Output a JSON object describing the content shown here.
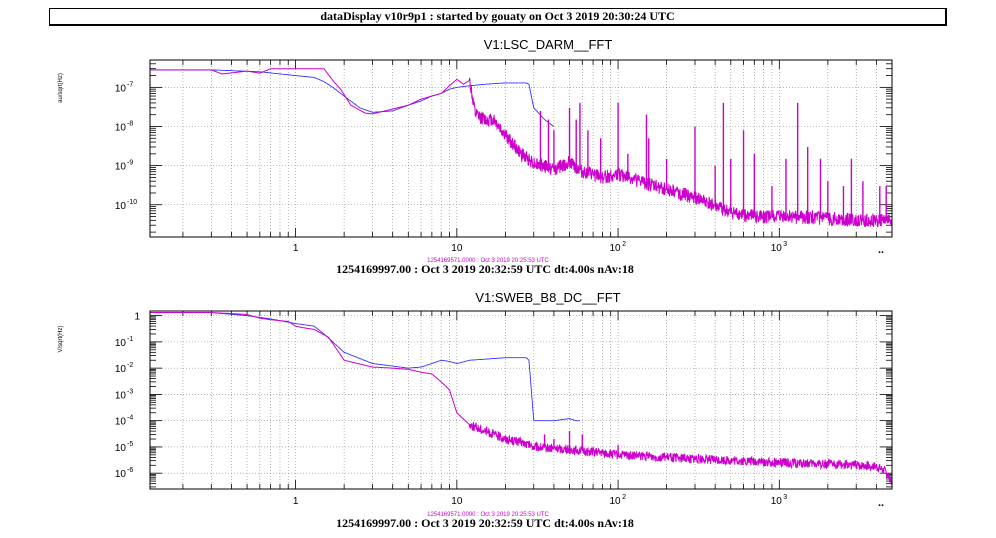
{
  "window": {
    "header": "dataDisplay v10r9p1 : started by gouaty on Oct  3 2019 20:30:24 UTC"
  },
  "chart_data": [
    {
      "type": "line",
      "title": "V1:LSC_DARM__FFT",
      "ylabel": "au/sqrt(Hz)",
      "xscale": "log",
      "yscale": "log",
      "xlim": [
        0.125,
        5000
      ],
      "ylim": [
        1.5e-11,
        5e-07
      ],
      "grid": true,
      "x_ticks": [
        {
          "value": 1,
          "base": "1",
          "exp": ""
        },
        {
          "value": 10,
          "base": "10",
          "exp": ""
        },
        {
          "value": 100,
          "base": "10",
          "exp": "2"
        },
        {
          "value": 1000,
          "base": "10",
          "exp": "3"
        }
      ],
      "y_ticks": [
        {
          "value": 1e-07,
          "base": "10",
          "exp": "-7"
        },
        {
          "value": 1e-08,
          "base": "10",
          "exp": "-8"
        },
        {
          "value": 1e-09,
          "base": "10",
          "exp": "-9"
        },
        {
          "value": 1e-10,
          "base": "10",
          "exp": "-10"
        }
      ],
      "x_overflow_label": "..",
      "reference_label": "1254169571.0000 : Oct  3 2019 20:25:53 UTC",
      "footer": "1254169997.00 : Oct  3 2019 20:32:59 UTC dt:4.00s nAv:18",
      "series": [
        {
          "color": "#3333ff",
          "x": [
            0.125,
            0.3,
            0.6,
            1.0,
            1.3,
            1.5,
            1.7,
            2.0,
            2.5,
            3.0,
            4.0,
            5.0,
            6.0,
            7.0,
            8.0,
            9.0,
            10.0,
            12.0,
            15.0,
            20.0,
            25.0,
            27.0,
            28.0,
            30.0,
            35.0,
            40.0
          ],
          "y": [
            2.8e-07,
            2.8e-07,
            2.5e-07,
            2e-07,
            1.8e-07,
            1.4e-07,
            1e-07,
            6e-08,
            3e-08,
            2.3e-08,
            2.5e-08,
            3.5e-08,
            4.5e-08,
            6e-08,
            7e-08,
            9e-08,
            1e-07,
            1.1e-07,
            1.2e-07,
            1.3e-07,
            1.3e-07,
            1.3e-07,
            1.2e-07,
            3e-08,
            1.5e-08,
            1e-08
          ]
        },
        {
          "color": "#cc00cc",
          "x": [
            0.125,
            0.3,
            0.35,
            0.5,
            0.6,
            0.7,
            1.0,
            1.5,
            1.7,
            1.9,
            2.2,
            2.7,
            3.0,
            4.0,
            5.0,
            6.0,
            7.0,
            8.0,
            9.0,
            10.0,
            11.0,
            12.0,
            13.0,
            15.0,
            17.0,
            20.0,
            25.0,
            30.0,
            40.0,
            50.0,
            60.0,
            80.0,
            100.0,
            150.0,
            200.0,
            300.0,
            400.0,
            500.0,
            700.0,
            1000.0,
            2000.0,
            3000.0,
            5000.0
          ],
          "y": [
            2.8e-07,
            2.8e-07,
            2.2e-07,
            2.6e-07,
            2.3e-07,
            3e-07,
            3e-07,
            3e-07,
            1.5e-07,
            9e-08,
            3.5e-08,
            2.2e-08,
            2.1e-08,
            2.8e-08,
            3.5e-08,
            5e-08,
            6e-08,
            7e-08,
            1.1e-07,
            1.6e-07,
            1.2e-07,
            1.5e-07,
            2e-08,
            1.5e-08,
            1.5e-08,
            6e-09,
            2e-09,
            1.2e-09,
            8e-10,
            1.2e-09,
            7e-10,
            5e-10,
            6e-10,
            3.5e-10,
            2.5e-10,
            1.5e-10,
            9e-11,
            6e-11,
            5e-11,
            5e-11,
            4.5e-11,
            4e-11,
            4e-11
          ]
        }
      ],
      "peaks": [
        {
          "x": 33,
          "y": 2.5e-08
        },
        {
          "x": 37,
          "y": 1.5e-08
        },
        {
          "x": 40,
          "y": 8e-09
        },
        {
          "x": 50,
          "y": 3e-08
        },
        {
          "x": 55,
          "y": 1.5e-08
        },
        {
          "x": 58,
          "y": 4e-08
        },
        {
          "x": 65,
          "y": 8e-09
        },
        {
          "x": 78,
          "y": 5e-09
        },
        {
          "x": 100,
          "y": 4e-08
        },
        {
          "x": 115,
          "y": 2e-09
        },
        {
          "x": 150,
          "y": 2e-08
        },
        {
          "x": 155,
          "y": 5e-09
        },
        {
          "x": 200,
          "y": 1.5e-09
        },
        {
          "x": 300,
          "y": 1e-08
        },
        {
          "x": 400,
          "y": 1e-09
        },
        {
          "x": 450,
          "y": 4e-08
        },
        {
          "x": 500,
          "y": 1.5e-09
        },
        {
          "x": 600,
          "y": 8e-09
        },
        {
          "x": 700,
          "y": 2e-09
        },
        {
          "x": 900,
          "y": 3e-10
        },
        {
          "x": 1100,
          "y": 1.5e-09
        },
        {
          "x": 1300,
          "y": 4e-08
        },
        {
          "x": 1500,
          "y": 3e-09
        },
        {
          "x": 1800,
          "y": 1.5e-09
        },
        {
          "x": 2000,
          "y": 4e-10
        },
        {
          "x": 2500,
          "y": 3e-10
        },
        {
          "x": 2800,
          "y": 1.5e-09
        },
        {
          "x": 3300,
          "y": 4e-10
        },
        {
          "x": 4200,
          "y": 3e-10
        },
        {
          "x": 4600,
          "y": 3e-10
        }
      ]
    },
    {
      "type": "line",
      "title": "V1:SWEB_B8_DC__FFT",
      "ylabel": "V/sqrt(Hz)",
      "xscale": "log",
      "yscale": "log",
      "xlim": [
        0.125,
        5000
      ],
      "ylim": [
        2.5e-07,
        1.5
      ],
      "grid": true,
      "x_ticks": [
        {
          "value": 1,
          "base": "1",
          "exp": ""
        },
        {
          "value": 10,
          "base": "10",
          "exp": ""
        },
        {
          "value": 100,
          "base": "10",
          "exp": "2"
        },
        {
          "value": 1000,
          "base": "10",
          "exp": "3"
        }
      ],
      "y_ticks": [
        {
          "value": 1,
          "base": "1",
          "exp": ""
        },
        {
          "value": 0.1,
          "base": "10",
          "exp": "-1"
        },
        {
          "value": 0.01,
          "base": "10",
          "exp": "-2"
        },
        {
          "value": 0.001,
          "base": "10",
          "exp": "-3"
        },
        {
          "value": 0.0001,
          "base": "10",
          "exp": "-4"
        },
        {
          "value": 1e-05,
          "base": "10",
          "exp": "-5"
        },
        {
          "value": 1e-06,
          "base": "10",
          "exp": "-6"
        }
      ],
      "x_overflow_label": "..",
      "reference_label": "1254169571.0000 : Oct  3 2019 20:25:53 UTC",
      "footer": "1254169997.00 : Oct  3 2019 20:32:59 UTC dt:4.00s nAv:18",
      "series": [
        {
          "color": "#3333ff",
          "x": [
            0.125,
            0.3,
            0.5,
            0.7,
            1.0,
            1.3,
            1.5,
            1.7,
            2.0,
            3.0,
            4.0,
            5.0,
            6.0,
            7.0,
            8.0,
            9.0,
            10.0,
            12.0,
            15.0,
            20.0,
            25.0,
            27.0,
            28.0,
            30.0,
            35.0,
            40.0,
            50.0,
            55.0,
            58.0
          ],
          "y": [
            1.3,
            1.3,
            1.0,
            0.75,
            0.5,
            0.4,
            0.2,
            0.1,
            0.04,
            0.015,
            0.012,
            0.01,
            0.011,
            0.015,
            0.02,
            0.018,
            0.015,
            0.02,
            0.022,
            0.025,
            0.025,
            0.025,
            0.02,
            0.0001,
            0.0001,
            0.0001,
            0.00012,
            0.0001,
            0.0001
          ]
        },
        {
          "color": "#cc00cc",
          "x": [
            0.125,
            0.3,
            0.4,
            0.5,
            0.6,
            0.7,
            0.9,
            1.0,
            1.1,
            1.3,
            1.6,
            2.0,
            3.0,
            4.0,
            5.0,
            6.0,
            7.0,
            8.0,
            9.0,
            10.0,
            12.0,
            15.0,
            20.0,
            25.0,
            30.0,
            50.0,
            100.0,
            200.0,
            500.0,
            1000.0,
            2000.0,
            3000.0,
            4000.0,
            4500.0,
            5000.0
          ],
          "y": [
            1.3,
            1.3,
            1.2,
            1.1,
            0.8,
            0.7,
            0.6,
            0.4,
            0.35,
            0.3,
            0.15,
            0.02,
            0.011,
            0.01,
            0.009,
            0.007,
            0.006,
            0.003,
            0.0015,
            0.0002,
            7e-05,
            4e-05,
            2e-05,
            1.5e-05,
            1e-05,
            8e-06,
            5e-06,
            4e-06,
            3e-06,
            2.5e-06,
            2.2e-06,
            2e-06,
            1.8e-06,
            1.2e-06,
            5e-07
          ]
        }
      ],
      "peaks": [
        {
          "x": 35,
          "y": 3e-05
        },
        {
          "x": 40,
          "y": 2e-05
        },
        {
          "x": 50,
          "y": 4e-05
        },
        {
          "x": 60,
          "y": 3e-05
        },
        {
          "x": 100,
          "y": 1.2e-05
        }
      ]
    }
  ]
}
